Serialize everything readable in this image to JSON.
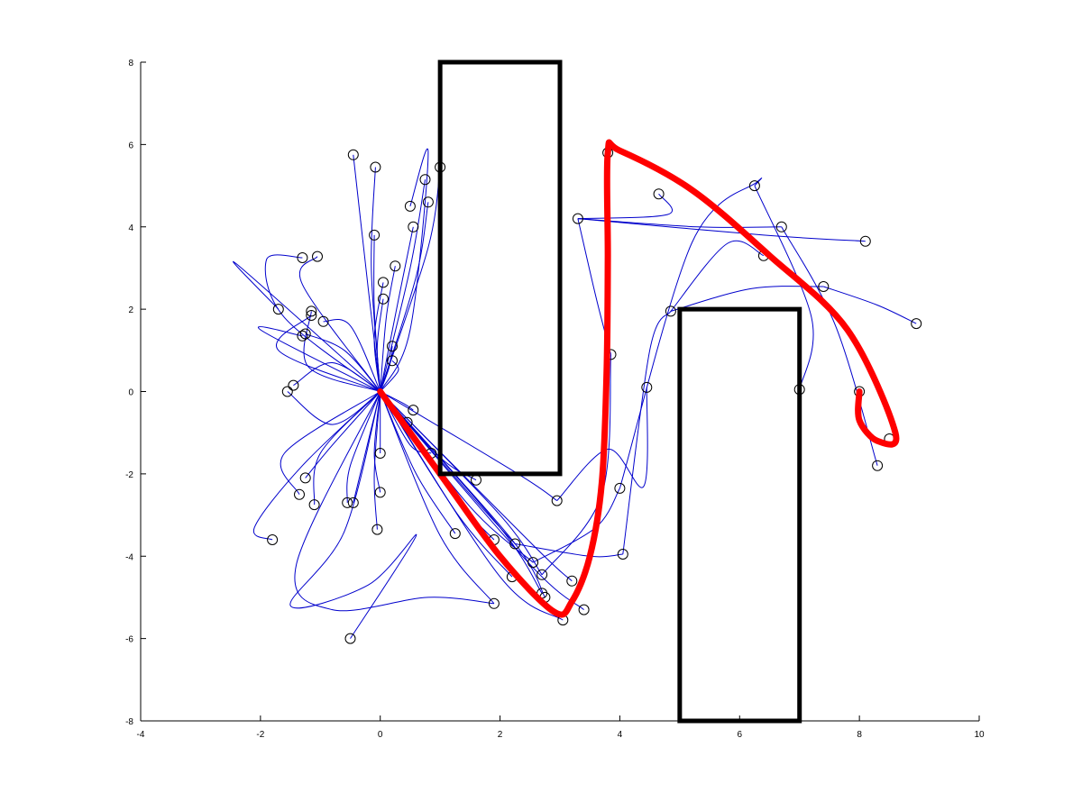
{
  "chart_data": {
    "type": "line",
    "title": "",
    "xlabel": "",
    "ylabel": "",
    "xlim": [
      -4,
      10
    ],
    "ylim": [
      -8,
      8
    ],
    "xticks": [
      -4,
      -2,
      0,
      2,
      4,
      6,
      8,
      10
    ],
    "yticks": [
      -8,
      -6,
      -4,
      -2,
      0,
      2,
      4,
      6,
      8
    ],
    "grid": false,
    "colors": {
      "tree": "#0000cc",
      "path": "#ff0000",
      "obstacle": "#000000",
      "node": "#000000"
    },
    "obstacles": [
      {
        "x": [
          1,
          3
        ],
        "y": [
          -2,
          8
        ]
      },
      {
        "x": [
          5,
          7
        ],
        "y": [
          -8,
          2
        ]
      }
    ],
    "start": [
      0,
      0
    ],
    "nodes": [
      [
        -0.45,
        5.75
      ],
      [
        -0.08,
        5.45
      ],
      [
        0.75,
        5.15
      ],
      [
        1.0,
        5.45
      ],
      [
        0.5,
        4.5
      ],
      [
        0.8,
        4.6
      ],
      [
        -0.1,
        3.8
      ],
      [
        0.55,
        4.0
      ],
      [
        -1.3,
        3.25
      ],
      [
        -1.05,
        3.28
      ],
      [
        0.25,
        3.05
      ],
      [
        0.05,
        2.65
      ],
      [
        0.05,
        2.25
      ],
      [
        -1.7,
        2.0
      ],
      [
        -1.15,
        1.95
      ],
      [
        -1.15,
        1.85
      ],
      [
        -0.95,
        1.7
      ],
      [
        -1.25,
        1.4
      ],
      [
        -1.3,
        1.35
      ],
      [
        0.2,
        1.1
      ],
      [
        0.2,
        0.75
      ],
      [
        -1.55,
        0.0
      ],
      [
        -1.45,
        0.15
      ],
      [
        0.55,
        -0.45
      ],
      [
        0.45,
        -0.75
      ],
      [
        0.0,
        -1.5
      ],
      [
        0.85,
        -1.5
      ],
      [
        -1.25,
        -2.1
      ],
      [
        -1.35,
        -2.5
      ],
      [
        0.0,
        -2.45
      ],
      [
        -1.1,
        -2.75
      ],
      [
        -0.55,
        -2.7
      ],
      [
        -0.45,
        -2.7
      ],
      [
        -0.05,
        -3.35
      ],
      [
        -1.8,
        -3.6
      ],
      [
        1.25,
        -3.45
      ],
      [
        1.6,
        -2.15
      ],
      [
        1.9,
        -3.6
      ],
      [
        2.25,
        -3.7
      ],
      [
        2.55,
        -4.15
      ],
      [
        2.2,
        -4.5
      ],
      [
        2.7,
        -4.45
      ],
      [
        2.7,
        -4.9
      ],
      [
        2.75,
        -5.0
      ],
      [
        1.9,
        -5.15
      ],
      [
        3.05,
        -5.55
      ],
      [
        3.2,
        -4.6
      ],
      [
        3.4,
        -5.3
      ],
      [
        2.95,
        -2.65
      ],
      [
        3.85,
        0.9
      ],
      [
        4.0,
        -2.35
      ],
      [
        4.05,
        -3.95
      ],
      [
        4.45,
        0.1
      ],
      [
        3.3,
        4.2
      ],
      [
        3.8,
        5.8
      ],
      [
        4.65,
        4.8
      ],
      [
        4.85,
        1.95
      ],
      [
        6.25,
        5.0
      ],
      [
        6.4,
        3.3
      ],
      [
        6.7,
        4.0
      ],
      [
        7.0,
        0.05
      ],
      [
        7.4,
        2.55
      ],
      [
        8.1,
        3.65
      ],
      [
        8.95,
        1.65
      ],
      [
        8.0,
        0.0
      ],
      [
        8.5,
        -1.15
      ],
      [
        8.3,
        -1.8
      ],
      [
        -0.5,
        -6.0
      ]
    ],
    "tree_edges": [
      [
        [
          0,
          0
        ],
        [
          -0.2,
          2.5
        ],
        [
          -0.45,
          5.75
        ]
      ],
      [
        [
          0,
          0
        ],
        [
          -0.15,
          3.0
        ],
        [
          -0.08,
          5.45
        ]
      ],
      [
        [
          0,
          0
        ],
        [
          0.5,
          3.0
        ],
        [
          0.75,
          5.15
        ]
      ],
      [
        [
          0,
          0
        ],
        [
          0.8,
          3.5
        ],
        [
          1.0,
          5.45
        ]
      ],
      [
        [
          0,
          0
        ],
        [
          0.5,
          1.5
        ],
        [
          0.8,
          5.8
        ],
        [
          0.5,
          4.5
        ]
      ],
      [
        [
          0,
          0
        ],
        [
          0.6,
          2.8
        ],
        [
          0.8,
          4.6
        ]
      ],
      [
        [
          0,
          0
        ],
        [
          -0.1,
          2.0
        ],
        [
          -0.1,
          3.8
        ]
      ],
      [
        [
          0,
          0
        ],
        [
          0.3,
          2.2
        ],
        [
          0.55,
          4.0
        ]
      ],
      [
        [
          0,
          0
        ],
        [
          -1.6,
          1.8
        ],
        [
          -1.9,
          3.2
        ],
        [
          -1.3,
          3.25
        ]
      ],
      [
        [
          0,
          0
        ],
        [
          -1.3,
          2.6
        ],
        [
          -1.05,
          3.28
        ]
      ],
      [
        [
          0,
          0
        ],
        [
          0.1,
          1.8
        ],
        [
          0.25,
          3.05
        ]
      ],
      [
        [
          0,
          0
        ],
        [
          -0.1,
          1.3
        ],
        [
          0.05,
          2.65
        ]
      ],
      [
        [
          0,
          0
        ],
        [
          -0.05,
          1.1
        ],
        [
          0.05,
          2.25
        ]
      ],
      [
        [
          0,
          0
        ],
        [
          -2.4,
          3.1
        ],
        [
          -1.7,
          2.0
        ]
      ],
      [
        [
          0,
          0
        ],
        [
          -1.2,
          0.6
        ],
        [
          -1.15,
          1.95
        ]
      ],
      [
        [
          0,
          0
        ],
        [
          -1.7,
          1.0
        ],
        [
          -1.15,
          1.85
        ]
      ],
      [
        [
          0,
          0
        ],
        [
          -0.5,
          1.6
        ],
        [
          -0.95,
          1.7
        ]
      ],
      [
        [
          0,
          0
        ],
        [
          -0.6,
          1.0
        ],
        [
          -1.25,
          1.4
        ]
      ],
      [
        [
          0,
          0
        ],
        [
          -2.0,
          1.5
        ],
        [
          -1.3,
          1.35
        ]
      ],
      [
        [
          0,
          0
        ],
        [
          0.15,
          0.6
        ],
        [
          0.2,
          1.1
        ]
      ],
      [
        [
          0,
          0
        ],
        [
          0.3,
          0.5
        ],
        [
          0.2,
          0.75
        ]
      ],
      [
        [
          0,
          0
        ],
        [
          -0.8,
          -0.8
        ],
        [
          -1.55,
          0.0
        ]
      ],
      [
        [
          0,
          0
        ],
        [
          -0.8,
          0.7
        ],
        [
          -1.45,
          0.15
        ]
      ],
      [
        [
          0,
          0
        ],
        [
          0.4,
          -0.3
        ],
        [
          0.55,
          -0.45
        ]
      ],
      [
        [
          0,
          0
        ],
        [
          0.3,
          -0.5
        ],
        [
          0.45,
          -0.75
        ]
      ],
      [
        [
          0,
          0
        ],
        [
          0.0,
          -0.8
        ],
        [
          0.0,
          -1.5
        ]
      ],
      [
        [
          0,
          0
        ],
        [
          0.5,
          -1.3
        ],
        [
          0.85,
          -1.5
        ]
      ],
      [
        [
          0,
          0
        ],
        [
          -0.8,
          -1.3
        ],
        [
          -1.25,
          -2.1
        ]
      ],
      [
        [
          0,
          0
        ],
        [
          -1.6,
          -1.5
        ],
        [
          -1.35,
          -2.5
        ]
      ],
      [
        [
          0,
          0
        ],
        [
          -0.1,
          -1.5
        ],
        [
          0.0,
          -2.45
        ]
      ],
      [
        [
          0,
          0
        ],
        [
          -1.0,
          -1.5
        ],
        [
          -1.1,
          -2.75
        ]
      ],
      [
        [
          0,
          0
        ],
        [
          -0.5,
          -1.8
        ],
        [
          -0.55,
          -2.7
        ]
      ],
      [
        [
          0,
          0
        ],
        [
          -0.3,
          -1.8
        ],
        [
          -0.45,
          -2.7
        ]
      ],
      [
        [
          0,
          0
        ],
        [
          -0.1,
          -2.0
        ],
        [
          -0.05,
          -3.35
        ]
      ],
      [
        [
          0,
          0
        ],
        [
          -1.3,
          -1.8
        ],
        [
          -2.1,
          -3.3
        ],
        [
          -1.8,
          -3.6
        ]
      ],
      [
        [
          0,
          0
        ],
        [
          0.6,
          -2.0
        ],
        [
          1.25,
          -3.45
        ]
      ],
      [
        [
          0,
          0
        ],
        [
          1.0,
          -1.6
        ],
        [
          1.6,
          -2.15
        ]
      ],
      [
        [
          0,
          0
        ],
        [
          1.2,
          -2.5
        ],
        [
          1.9,
          -3.6
        ]
      ],
      [
        [
          0,
          0
        ],
        [
          1.5,
          -2.5
        ],
        [
          2.25,
          -3.7
        ]
      ],
      [
        [
          0,
          0
        ],
        [
          1.5,
          -2.8
        ],
        [
          2.55,
          -4.15
        ]
      ],
      [
        [
          0,
          0
        ],
        [
          1.3,
          -3.0
        ],
        [
          2.2,
          -4.5
        ]
      ],
      [
        [
          0,
          0
        ],
        [
          2.0,
          -3.0
        ],
        [
          2.7,
          -4.45
        ]
      ],
      [
        [
          0,
          0
        ],
        [
          2.0,
          -3.3
        ],
        [
          2.7,
          -4.9
        ]
      ],
      [
        [
          0,
          0
        ],
        [
          2.2,
          -3.6
        ],
        [
          2.75,
          -5.0
        ]
      ],
      [
        [
          0,
          0
        ],
        [
          1.0,
          -3.5
        ],
        [
          1.9,
          -5.15
        ]
      ],
      [
        [
          0,
          0
        ],
        [
          2.0,
          -4.5
        ],
        [
          3.05,
          -5.55
        ]
      ],
      [
        [
          0,
          0
        ],
        [
          2.6,
          -3.8
        ],
        [
          3.2,
          -4.6
        ]
      ],
      [
        [
          0,
          0
        ],
        [
          2.5,
          -4.2
        ],
        [
          3.4,
          -5.3
        ]
      ],
      [
        [
          0,
          0
        ],
        [
          2.3,
          -2.0
        ],
        [
          2.95,
          -2.65
        ]
      ],
      [
        [
          0,
          0
        ],
        [
          -0.6,
          -3.4
        ],
        [
          -1.5,
          -5.2
        ],
        [
          -0.2,
          -4.7
        ],
        [
          0.6,
          -3.5
        ],
        [
          -0.5,
          -6.0
        ]
      ],
      [
        [
          0,
          0
        ],
        [
          -1.4,
          -4.2
        ],
        [
          -0.8,
          -5.3
        ],
        [
          0.8,
          -5.0
        ],
        [
          1.9,
          -5.15
        ]
      ],
      [
        [
          2.7,
          -4.45
        ],
        [
          3.7,
          -2.5
        ],
        [
          3.85,
          0.9
        ]
      ],
      [
        [
          2.55,
          -4.15
        ],
        [
          3.6,
          -3.3
        ],
        [
          4.0,
          -2.35
        ]
      ],
      [
        [
          2.25,
          -3.7
        ],
        [
          3.5,
          -4.0
        ],
        [
          4.05,
          -3.95
        ]
      ],
      [
        [
          2.95,
          -2.65
        ],
        [
          3.8,
          -1.4
        ],
        [
          4.4,
          -2.3
        ],
        [
          4.45,
          0.1
        ]
      ],
      [
        [
          3.85,
          0.9
        ],
        [
          3.6,
          2.3
        ],
        [
          3.3,
          4.2
        ]
      ],
      [
        [
          3.3,
          4.2
        ],
        [
          5.3,
          4.0
        ],
        [
          6.7,
          4.0
        ]
      ],
      [
        [
          3.3,
          4.2
        ],
        [
          6.4,
          3.8
        ],
        [
          8.1,
          3.65
        ]
      ],
      [
        [
          3.3,
          4.2
        ],
        [
          4.8,
          4.3
        ],
        [
          4.65,
          4.8
        ]
      ],
      [
        [
          4.05,
          -3.95
        ],
        [
          4.5,
          1.0
        ],
        [
          4.85,
          1.95
        ]
      ],
      [
        [
          4.85,
          1.95
        ],
        [
          6.2,
          2.5
        ],
        [
          7.4,
          2.55
        ]
      ],
      [
        [
          4.85,
          1.95
        ],
        [
          5.8,
          3.6
        ],
        [
          6.4,
          3.3
        ]
      ],
      [
        [
          4.0,
          -2.35
        ],
        [
          5.2,
          3.6
        ],
        [
          6.3,
          5.1
        ],
        [
          6.25,
          5.0
        ]
      ],
      [
        [
          6.25,
          5.0
        ],
        [
          7.2,
          1.8
        ],
        [
          7.0,
          0.05
        ]
      ],
      [
        [
          6.7,
          4.0
        ],
        [
          7.6,
          1.6
        ],
        [
          8.3,
          -1.8
        ]
      ],
      [
        [
          7.4,
          2.55
        ],
        [
          8.3,
          2.1
        ],
        [
          8.95,
          1.65
        ]
      ]
    ],
    "path": [
      [
        0.0,
        0.0
      ],
      [
        1.0,
        -2.0
      ],
      [
        2.0,
        -4.0
      ],
      [
        2.9,
        -5.35
      ],
      [
        3.2,
        -5.1
      ],
      [
        3.5,
        -4.0
      ],
      [
        3.7,
        -2.2
      ],
      [
        3.78,
        0.5
      ],
      [
        3.8,
        3.2
      ],
      [
        3.8,
        5.8
      ],
      [
        4.0,
        5.85
      ],
      [
        5.2,
        4.9
      ],
      [
        6.5,
        3.3
      ],
      [
        7.8,
        1.5
      ],
      [
        8.6,
        -1.0
      ],
      [
        8.3,
        -1.2
      ],
      [
        8.0,
        -0.7
      ],
      [
        8.0,
        0.0
      ]
    ]
  }
}
